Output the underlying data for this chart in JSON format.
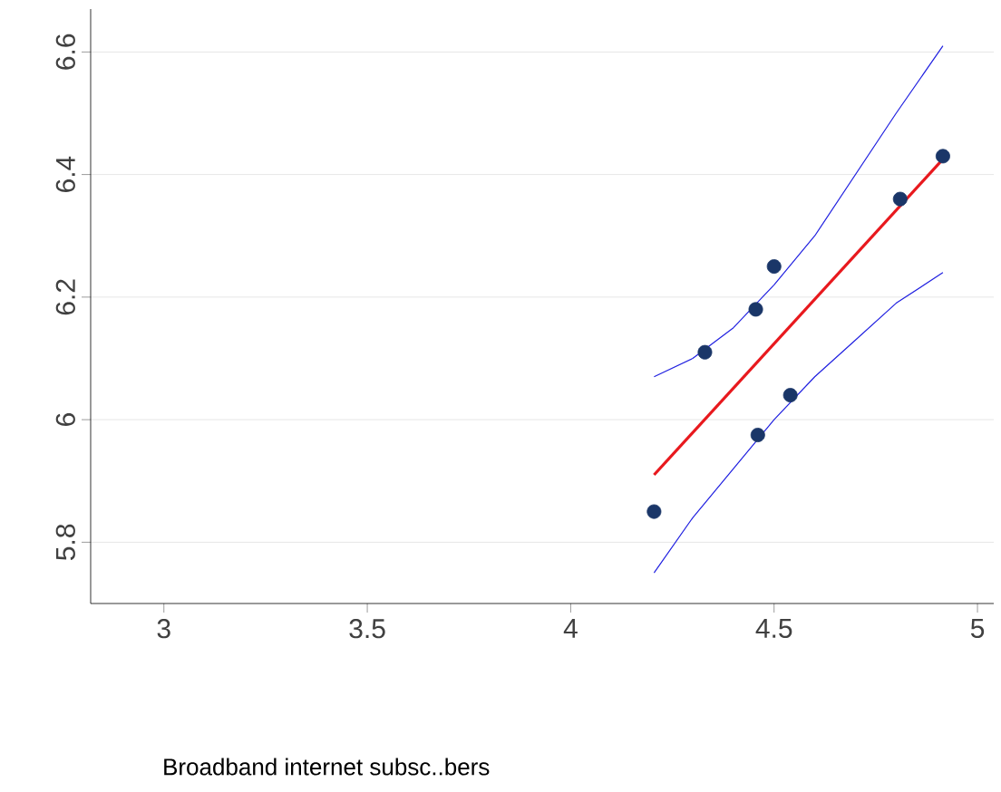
{
  "chart_data": {
    "type": "scatter",
    "annotations": [
      "Broadband internet subsc..bers"
    ],
    "xlim": [
      2.82,
      5.04
    ],
    "ylim": [
      5.7,
      6.67
    ],
    "xticks": [
      3,
      3.5,
      4,
      4.5,
      5
    ],
    "yticks": [
      5.8,
      6,
      6.2,
      6.4,
      6.6
    ],
    "grid": "y",
    "series": [
      {
        "type": "line",
        "color": "#2020e0",
        "x": [
          4.205,
          4.3,
          4.4,
          4.5,
          4.6,
          4.7,
          4.8,
          4.915
        ],
        "values": [
          6.07,
          6.1,
          6.15,
          6.22,
          6.3,
          6.4,
          6.5,
          6.61
        ]
      },
      {
        "type": "line",
        "color": "#2020e0",
        "x": [
          4.205,
          4.3,
          4.4,
          4.5,
          4.6,
          4.7,
          4.8,
          4.915
        ],
        "values": [
          5.75,
          5.84,
          5.92,
          6.0,
          6.07,
          6.13,
          6.19,
          6.24
        ]
      },
      {
        "type": "line",
        "color": "#e8191e",
        "x": [
          4.205,
          4.915
        ],
        "values": [
          5.91,
          6.425
        ]
      },
      {
        "color": "#1a3668",
        "marker": "circle",
        "x": [
          4.205,
          4.33,
          4.455,
          4.5,
          4.46,
          4.54,
          4.81,
          4.915
        ],
        "values": [
          5.85,
          6.11,
          6.18,
          6.25,
          5.975,
          6.04,
          6.36,
          6.43
        ]
      }
    ]
  }
}
